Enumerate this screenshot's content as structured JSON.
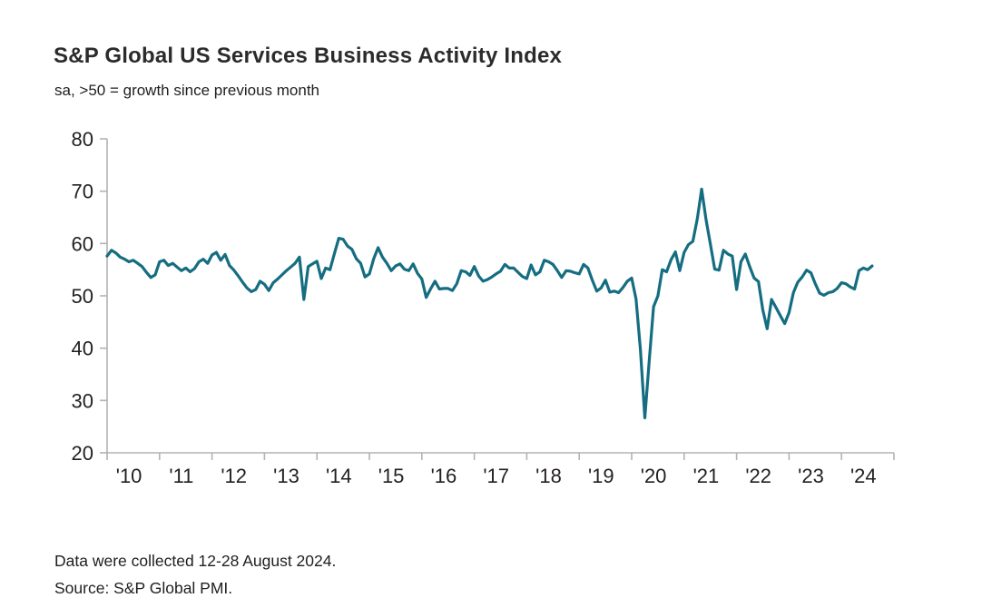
{
  "header": {
    "title": "S&P Global US Services Business Activity Index",
    "subtitle": "sa, >50 = growth since previous month"
  },
  "footer": {
    "line1": "Data were collected 12-28 August 2024.",
    "line2": "Source: S&P Global PMI."
  },
  "chart_data": {
    "type": "line",
    "title": "S&P Global US Services Business Activity Index",
    "subtitle": "sa, >50 = growth since previous month",
    "frequency": "monthly",
    "x_start": "2010-01",
    "x_end": "2024-08",
    "ylim": [
      20,
      80
    ],
    "y_ticks": [
      20,
      30,
      40,
      50,
      60,
      70,
      80
    ],
    "x_tick_labels": [
      "'10",
      "'11",
      "'12",
      "'13",
      "'14",
      "'15",
      "'16",
      "'17",
      "'18",
      "'19",
      "'20",
      "'21",
      "'22",
      "'23",
      "'24"
    ],
    "line_color": "#156d81",
    "axis_color": "#b3b3b3",
    "months_domain": 180,
    "values": [
      57.6,
      58.7,
      58.2,
      57.4,
      57.0,
      56.5,
      56.8,
      56.2,
      55.6,
      54.5,
      53.5,
      54.0,
      56.5,
      56.8,
      55.8,
      56.2,
      55.5,
      54.8,
      55.3,
      54.6,
      55.2,
      56.5,
      57.0,
      56.2,
      57.8,
      58.3,
      56.8,
      57.9,
      55.8,
      54.9,
      53.8,
      52.6,
      51.5,
      50.8,
      51.2,
      52.8,
      52.2,
      51.0,
      52.5,
      53.2,
      54.0,
      54.8,
      55.5,
      56.2,
      57.4,
      49.3,
      55.6,
      56.1,
      56.6,
      53.3,
      55.3,
      55.0,
      58.1,
      61.0,
      60.8,
      59.5,
      58.9,
      57.1,
      56.2,
      53.6,
      54.2,
      57.1,
      59.2,
      57.4,
      56.2,
      54.8,
      55.7,
      56.1,
      55.1,
      54.8,
      56.1,
      54.3,
      53.2,
      49.7,
      51.3,
      52.8,
      51.3,
      51.4,
      51.4,
      51.0,
      52.3,
      54.8,
      54.6,
      53.9,
      55.6,
      53.8,
      52.8,
      53.1,
      53.6,
      54.2,
      54.7,
      56.0,
      55.3,
      55.3,
      54.5,
      53.7,
      53.3,
      55.9,
      54.0,
      54.6,
      56.8,
      56.5,
      56.0,
      54.8,
      53.5,
      54.8,
      54.7,
      54.4,
      54.2,
      56.0,
      55.3,
      53.0,
      50.9,
      51.5,
      53.0,
      50.7,
      50.9,
      50.6,
      51.6,
      52.8,
      53.4,
      49.4,
      39.8,
      26.7,
      37.5,
      47.9,
      50.0,
      55.0,
      54.6,
      56.9,
      58.4,
      54.8,
      58.3,
      59.8,
      60.4,
      64.7,
      70.4,
      64.6,
      59.9,
      55.1,
      54.9,
      58.7,
      58.0,
      57.6,
      51.2,
      56.5,
      58.0,
      55.6,
      53.4,
      52.7,
      47.3,
      43.7,
      49.3,
      47.8,
      46.2,
      44.7,
      46.8,
      50.6,
      52.6,
      53.6,
      54.9,
      54.4,
      52.3,
      50.5,
      50.1,
      50.6,
      50.8,
      51.4,
      52.5,
      52.3,
      51.7,
      51.3,
      54.8,
      55.3,
      55.0,
      55.7
    ]
  }
}
